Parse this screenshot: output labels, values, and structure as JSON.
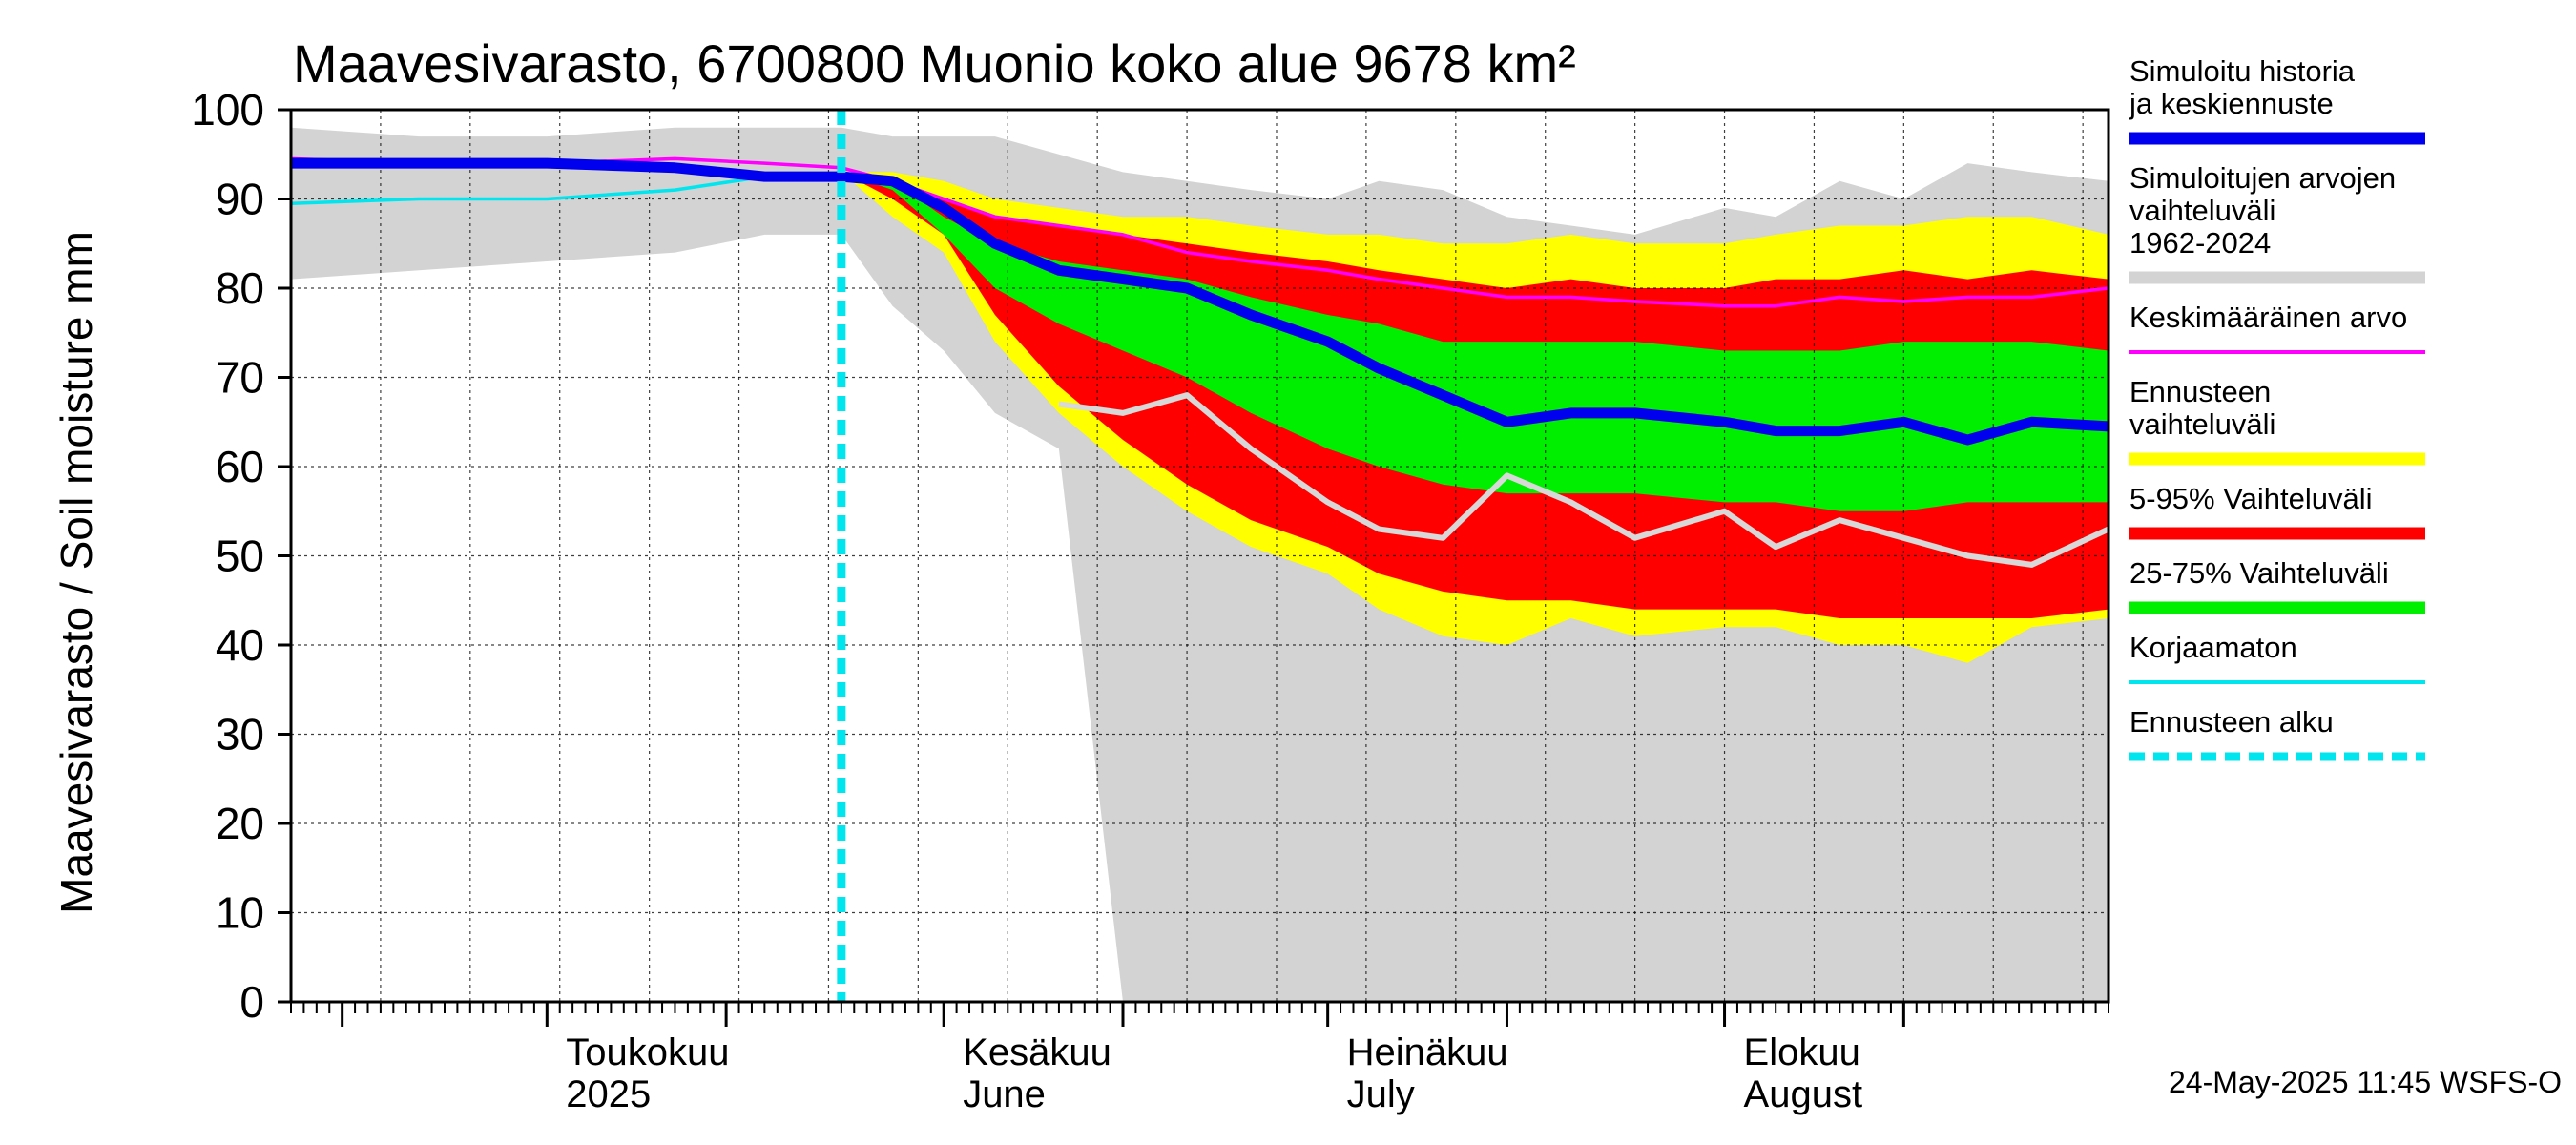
{
  "chart_data": {
    "type": "area",
    "title": "Maavesivarasto, 6700800 Muonio koko alue 9678 km²",
    "ylabel": "Maavesivarasto / Soil moisture   mm",
    "xlabel": "",
    "ylim": [
      0,
      100
    ],
    "yticks": [
      0,
      10,
      20,
      30,
      40,
      50,
      60,
      70,
      80,
      90,
      100
    ],
    "grid": true,
    "legend_position": "right",
    "x_start": "2025-04-11",
    "x_end": "2025-08-31",
    "forecast_start": "2025-05-24",
    "month_labels": [
      {
        "date": "2025-05-01",
        "line1": "Toukokuu",
        "line2": "2025"
      },
      {
        "date": "2025-06-01",
        "line1": "Kesäkuu",
        "line2": "June"
      },
      {
        "date": "2025-07-01",
        "line1": "Heinäkuu",
        "line2": "July"
      },
      {
        "date": "2025-08-01",
        "line1": "Elokuu",
        "line2": "August"
      }
    ],
    "dates": [
      "2025-04-11",
      "2025-04-21",
      "2025-05-01",
      "2025-05-11",
      "2025-05-18",
      "2025-05-24",
      "2025-05-28",
      "2025-06-01",
      "2025-06-05",
      "2025-06-10",
      "2025-06-15",
      "2025-06-20",
      "2025-06-25",
      "2025-07-01",
      "2025-07-05",
      "2025-07-10",
      "2025-07-15",
      "2025-07-20",
      "2025-07-25",
      "2025-08-01",
      "2025-08-05",
      "2025-08-10",
      "2025-08-15",
      "2025-08-20",
      "2025-08-25",
      "2025-08-31"
    ],
    "series": [
      {
        "name": "Simuloitujen arvojen vaihteluväli 1962-2024",
        "type": "band",
        "color": "#d3d3d3",
        "upper": [
          98,
          97,
          97,
          98,
          98,
          98,
          97,
          97,
          97,
          95,
          93,
          92,
          91,
          90,
          92,
          91,
          88,
          87,
          86,
          89,
          88,
          92,
          90,
          94,
          93,
          92
        ],
        "lower": [
          81,
          82,
          83,
          84,
          86,
          86,
          78,
          73,
          66,
          62,
          null,
          null,
          null,
          null,
          null,
          null,
          null,
          null,
          null,
          null,
          null,
          null,
          null,
          null,
          null,
          null
        ]
      },
      {
        "name": "Ennusteen vaihteluväli",
        "type": "band",
        "color": "#ffff00",
        "upper": [
          null,
          null,
          null,
          null,
          null,
          93,
          93,
          92,
          90,
          89,
          88,
          88,
          87,
          86,
          86,
          85,
          85,
          86,
          85,
          85,
          86,
          87,
          87,
          88,
          88,
          86
        ],
        "lower": [
          null,
          null,
          null,
          null,
          null,
          93,
          88,
          84,
          74,
          66,
          60,
          55,
          51,
          48,
          44,
          41,
          40,
          43,
          41,
          42,
          42,
          40,
          40,
          38,
          42,
          43
        ]
      },
      {
        "name": "5-95% Vaihteluväli",
        "type": "band",
        "color": "#ff0000",
        "upper": [
          null,
          null,
          null,
          null,
          null,
          93,
          92,
          90,
          88,
          87,
          86,
          85,
          84,
          83,
          82,
          81,
          80,
          81,
          80,
          80,
          81,
          81,
          82,
          81,
          82,
          81
        ],
        "lower": [
          null,
          null,
          null,
          null,
          null,
          93,
          90,
          86,
          77,
          69,
          63,
          58,
          54,
          51,
          48,
          46,
          45,
          45,
          44,
          44,
          44,
          43,
          43,
          43,
          43,
          44
        ]
      },
      {
        "name": "25-75% Vaihteluväli",
        "type": "band",
        "color": "#00ee00",
        "upper": [
          null,
          null,
          null,
          null,
          null,
          93,
          92,
          88,
          85,
          83,
          82,
          81,
          79,
          77,
          76,
          74,
          74,
          74,
          74,
          73,
          73,
          73,
          74,
          74,
          74,
          73
        ],
        "lower": [
          null,
          null,
          null,
          null,
          null,
          93,
          91,
          86,
          80,
          76,
          73,
          70,
          66,
          62,
          60,
          58,
          57,
          57,
          57,
          56,
          56,
          55,
          55,
          56,
          56,
          56
        ]
      },
      {
        "name": "Keskimääräinen arvo",
        "type": "line",
        "color": "#ff00ff",
        "values": [
          94.5,
          94,
          94,
          94.5,
          94,
          93.5,
          92,
          90,
          88,
          87,
          86,
          84,
          83,
          82,
          81,
          80,
          79,
          79,
          78.5,
          78,
          78,
          79,
          78.5,
          79,
          79,
          80
        ]
      },
      {
        "name": "Korjaamaton",
        "type": "line",
        "color": "#00e5ee",
        "values": [
          89.5,
          90,
          90,
          91,
          92.5,
          92.5,
          null,
          null,
          null,
          null,
          null,
          null,
          null,
          null,
          null,
          null,
          null,
          null,
          null,
          null,
          null,
          null,
          null,
          null,
          null,
          null
        ]
      },
      {
        "name": "Simuloitu historia ja keskiennuste",
        "type": "line",
        "color": "#0000ee",
        "values": [
          94,
          94,
          94,
          93.5,
          92.5,
          92.5,
          92,
          89,
          85,
          82,
          81,
          80,
          77,
          74,
          71,
          68,
          65,
          66,
          66,
          65,
          64,
          64,
          65,
          63,
          65,
          64.5
        ]
      },
      {
        "name": "",
        "type": "line",
        "color": "#d8d8d8",
        "values": [
          null,
          null,
          null,
          null,
          null,
          null,
          null,
          null,
          null,
          67,
          66,
          68,
          62,
          56,
          53,
          52,
          59,
          56,
          52,
          55,
          51,
          54,
          52,
          50,
          49,
          53
        ]
      }
    ]
  },
  "legend": [
    {
      "label": "Simuloitu historia ja keskiennuste",
      "color": "#0000ee",
      "style": "thick"
    },
    {
      "label": "Simuloitujen arvojen vaihteluväli 1962-2024",
      "color": "#d3d3d3",
      "style": "thick"
    },
    {
      "label": "Keskimääräinen arvo",
      "color": "#ff00ff",
      "style": "thin"
    },
    {
      "label": "Ennusteen vaihteluväli",
      "color": "#ffff00",
      "style": "thick"
    },
    {
      "label": "5-95% Vaihteluväli",
      "color": "#ff0000",
      "style": "thick"
    },
    {
      "label": "25-75% Vaihteluväli",
      "color": "#00ee00",
      "style": "thick"
    },
    {
      "label": "Korjaamaton",
      "color": "#00e5ee",
      "style": "thin"
    },
    {
      "label": "Ennusteen alku",
      "color": "#00e5ee",
      "style": "dashed"
    }
  ],
  "footer": "24-May-2025 11:45 WSFS-O"
}
